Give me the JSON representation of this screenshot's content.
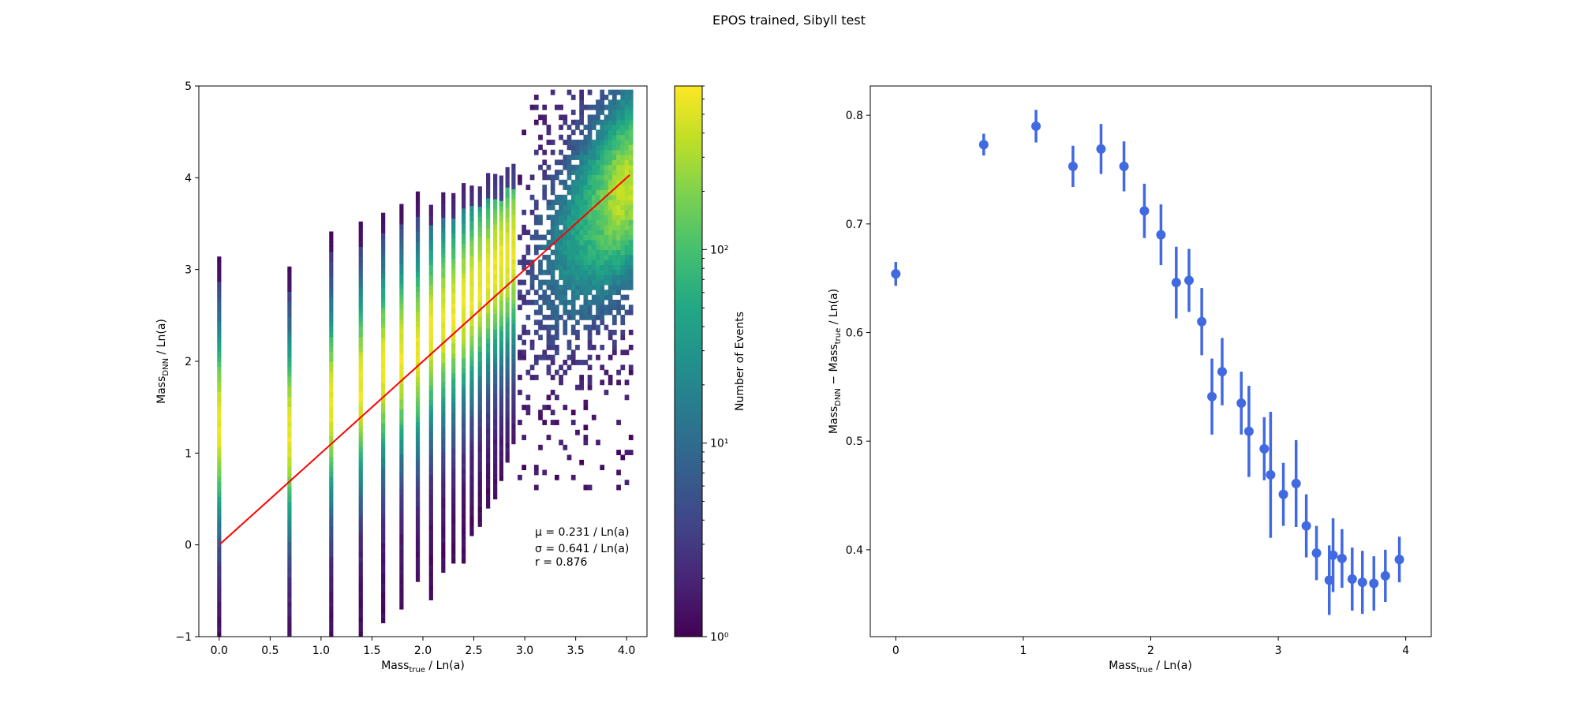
{
  "figure": {
    "title": "EPOS trained, Sibyll test"
  },
  "chart_data": [
    {
      "type": "heatmap",
      "xlabel": {
        "main": "Mass",
        "sub": "true",
        "rest": " / Ln(a)"
      },
      "ylabel": {
        "main": "Mass",
        "sub": "DNN",
        "rest": " / Ln(a)"
      },
      "xlim": [
        -0.2,
        4.2
      ],
      "ylim": [
        -1,
        5
      ],
      "xticks": [
        "0.0",
        "0.5",
        "1.0",
        "1.5",
        "2.0",
        "2.5",
        "3.0",
        "3.5",
        "4.0"
      ],
      "yticks": [
        "−1",
        "0",
        "1",
        "2",
        "3",
        "4",
        "5"
      ],
      "colorbar": {
        "label": "Number of Events",
        "scale": "log",
        "range": [
          1,
          700
        ],
        "ticks": [
          "10⁰",
          "10¹",
          "10²"
        ]
      },
      "reference_line": {
        "x": [
          0,
          4.03
        ],
        "y": [
          0,
          4.03
        ],
        "color": "#ff0000"
      },
      "annotations": [
        "μ =  0.231 / Ln(a)",
        "σ =  0.641 / Ln(a)",
        "r = 0.876"
      ],
      "mass_columns": [
        {
          "x": 0.0,
          "ymin": -1,
          "ymax": 3.1,
          "peak": 1.3
        },
        {
          "x": 0.69,
          "ymin": -1,
          "ymax": 3.0,
          "peak": 1.2
        },
        {
          "x": 1.1,
          "ymin": -1,
          "ymax": 3.4,
          "peak": 1.5
        },
        {
          "x": 1.39,
          "ymin": -1,
          "ymax": 3.5,
          "peak": 1.7
        },
        {
          "x": 1.61,
          "ymin": -0.85,
          "ymax": 3.6,
          "peak": 1.9
        },
        {
          "x": 1.79,
          "ymin": -0.7,
          "ymax": 3.7,
          "peak": 2.0
        },
        {
          "x": 1.95,
          "ymin": -0.4,
          "ymax": 3.8,
          "peak": 2.1
        },
        {
          "x": 2.08,
          "ymin": -0.6,
          "ymax": 3.7,
          "peak": 2.3
        },
        {
          "x": 2.2,
          "ymin": -0.3,
          "ymax": 3.8,
          "peak": 2.4
        },
        {
          "x": 2.3,
          "ymin": -0.2,
          "ymax": 3.8,
          "peak": 2.5
        },
        {
          "x": 2.4,
          "ymin": -0.2,
          "ymax": 3.9,
          "peak": 2.6
        },
        {
          "x": 2.48,
          "ymin": 0.1,
          "ymax": 3.9,
          "peak": 2.7
        },
        {
          "x": 2.56,
          "ymin": 0.2,
          "ymax": 3.9,
          "peak": 2.8
        },
        {
          "x": 2.64,
          "ymin": 0.4,
          "ymax": 4.0,
          "peak": 2.9
        },
        {
          "x": 2.71,
          "ymin": 0.5,
          "ymax": 4.0,
          "peak": 3.0
        },
        {
          "x": 2.77,
          "ymin": 0.7,
          "ymax": 4.0,
          "peak": 3.05
        },
        {
          "x": 2.83,
          "ymin": 0.9,
          "ymax": 4.1,
          "peak": 3.1
        },
        {
          "x": 2.89,
          "ymin": 1.1,
          "ymax": 4.1,
          "peak": 3.2
        }
      ]
    },
    {
      "type": "scatter",
      "xlabel": {
        "main": "Mass",
        "sub": "true",
        "rest": " / Ln(a)"
      },
      "ylabel": {
        "main": "Mass",
        "sub": "DNN",
        "mid": " − Mass",
        "sub2": "true",
        "rest": " / Ln(a)"
      },
      "xlim": [
        -0.2,
        4.2
      ],
      "ylim": [
        0.32,
        0.827
      ],
      "xticks": [
        "0",
        "1",
        "2",
        "3",
        "4"
      ],
      "yticks": [
        "0.4",
        "0.5",
        "0.6",
        "0.7",
        "0.8"
      ],
      "marker_color": "#4169e1",
      "points": [
        {
          "x": 0.0,
          "y": 0.654,
          "err": 0.011
        },
        {
          "x": 0.69,
          "y": 0.773,
          "err": 0.01
        },
        {
          "x": 1.1,
          "y": 0.79,
          "err": 0.015
        },
        {
          "x": 1.39,
          "y": 0.753,
          "err": 0.019
        },
        {
          "x": 1.61,
          "y": 0.769,
          "err": 0.023
        },
        {
          "x": 1.79,
          "y": 0.753,
          "err": 0.023
        },
        {
          "x": 1.95,
          "y": 0.712,
          "err": 0.025
        },
        {
          "x": 2.08,
          "y": 0.69,
          "err": 0.028
        },
        {
          "x": 2.2,
          "y": 0.646,
          "err": 0.033
        },
        {
          "x": 2.3,
          "y": 0.648,
          "err": 0.029
        },
        {
          "x": 2.4,
          "y": 0.61,
          "err": 0.031
        },
        {
          "x": 2.48,
          "y": 0.541,
          "err": 0.035
        },
        {
          "x": 2.56,
          "y": 0.564,
          "err": 0.031
        },
        {
          "x": 2.71,
          "y": 0.535,
          "err": 0.029
        },
        {
          "x": 2.77,
          "y": 0.509,
          "err": 0.042
        },
        {
          "x": 2.89,
          "y": 0.493,
          "err": 0.029
        },
        {
          "x": 2.94,
          "y": 0.469,
          "err": 0.058
        },
        {
          "x": 3.04,
          "y": 0.451,
          "err": 0.029
        },
        {
          "x": 3.14,
          "y": 0.461,
          "err": 0.04
        },
        {
          "x": 3.22,
          "y": 0.422,
          "err": 0.029
        },
        {
          "x": 3.3,
          "y": 0.397,
          "err": 0.025
        },
        {
          "x": 3.4,
          "y": 0.372,
          "err": 0.032
        },
        {
          "x": 3.43,
          "y": 0.395,
          "err": 0.034
        },
        {
          "x": 3.5,
          "y": 0.392,
          "err": 0.027
        },
        {
          "x": 3.58,
          "y": 0.373,
          "err": 0.029
        },
        {
          "x": 3.66,
          "y": 0.37,
          "err": 0.029
        },
        {
          "x": 3.75,
          "y": 0.369,
          "err": 0.025
        },
        {
          "x": 3.84,
          "y": 0.376,
          "err": 0.024
        },
        {
          "x": 3.95,
          "y": 0.391,
          "err": 0.021
        }
      ]
    }
  ]
}
